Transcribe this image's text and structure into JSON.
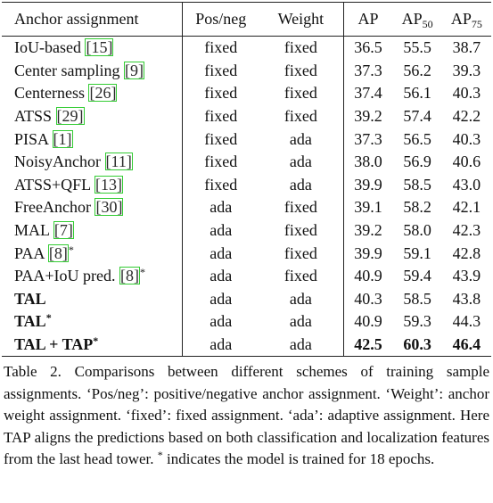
{
  "table": {
    "header": [
      {
        "text": "Anchor assignment"
      },
      {
        "text": "Pos/neg"
      },
      {
        "text": "Weight"
      },
      {
        "text": "AP"
      },
      {
        "text": "AP",
        "sub": "50"
      },
      {
        "text": "AP",
        "sub": "75"
      }
    ],
    "rows": [
      {
        "name": "IoU-based",
        "cite": "[15]",
        "cells": [
          "fixed",
          "fixed",
          "36.5",
          "55.5",
          "38.7"
        ]
      },
      {
        "name": "Center sampling",
        "cite": "[9]",
        "cells": [
          "fixed",
          "fixed",
          "37.3",
          "56.2",
          "39.3"
        ]
      },
      {
        "name": "Centerness",
        "cite": "[26]",
        "cells": [
          "fixed",
          "fixed",
          "37.4",
          "56.1",
          "40.3"
        ]
      },
      {
        "name": "ATSS",
        "cite": "[29]",
        "cells": [
          "fixed",
          "fixed",
          "39.2",
          "57.4",
          "42.2"
        ]
      },
      {
        "name": "PISA",
        "cite": "[1]",
        "cells": [
          "fixed",
          "ada",
          "37.3",
          "56.5",
          "40.3"
        ]
      },
      {
        "name": "NoisyAnchor",
        "cite": "[11]",
        "cells": [
          "fixed",
          "ada",
          "38.0",
          "56.9",
          "40.6"
        ]
      },
      {
        "name": "ATSS+QFL",
        "cite": "[13]",
        "cells": [
          "fixed",
          "ada",
          "39.9",
          "58.5",
          "43.0"
        ]
      },
      {
        "name": "FreeAnchor",
        "cite": "[30]",
        "cells": [
          "ada",
          "fixed",
          "39.1",
          "58.2",
          "42.1"
        ]
      },
      {
        "name": "MAL",
        "cite": "[7]",
        "cells": [
          "ada",
          "fixed",
          "39.2",
          "58.0",
          "42.3"
        ]
      },
      {
        "name": "PAA",
        "cite": "[8]",
        "sup": "*",
        "cells": [
          "ada",
          "fixed",
          "39.9",
          "59.1",
          "42.8"
        ]
      },
      {
        "name": "PAA+IoU pred.",
        "cite": "[8]",
        "sup": "*",
        "cells": [
          "ada",
          "fixed",
          "40.9",
          "59.4",
          "43.9"
        ]
      },
      {
        "name": "TAL",
        "bold": true,
        "cells": [
          "ada",
          "ada",
          "40.3",
          "58.5",
          "43.8"
        ]
      },
      {
        "name": "TAL",
        "sup": "*",
        "bold": true,
        "cells": [
          "ada",
          "ada",
          "40.9",
          "59.3",
          "44.3"
        ]
      },
      {
        "name": "TAL + TAP",
        "sup": "*",
        "bold": true,
        "bold_values": true,
        "cells": [
          "ada",
          "ada",
          "42.5",
          "60.3",
          "46.4"
        ]
      }
    ]
  },
  "caption": {
    "label": "Table 2.",
    "text": "Comparisons between different schemes of training sample assignments. ‘Pos/neg’: positive/negative anchor assignment. ‘Weight’: anchor weight assignment. ‘fixed’: fixed assignment. ‘ada’: adaptive assignment. Here TAP aligns the predictions based on both classification and localization features from the last head tower.",
    "sup": "*",
    "text_after": "indicates the model is trained for 18 epochs."
  }
}
